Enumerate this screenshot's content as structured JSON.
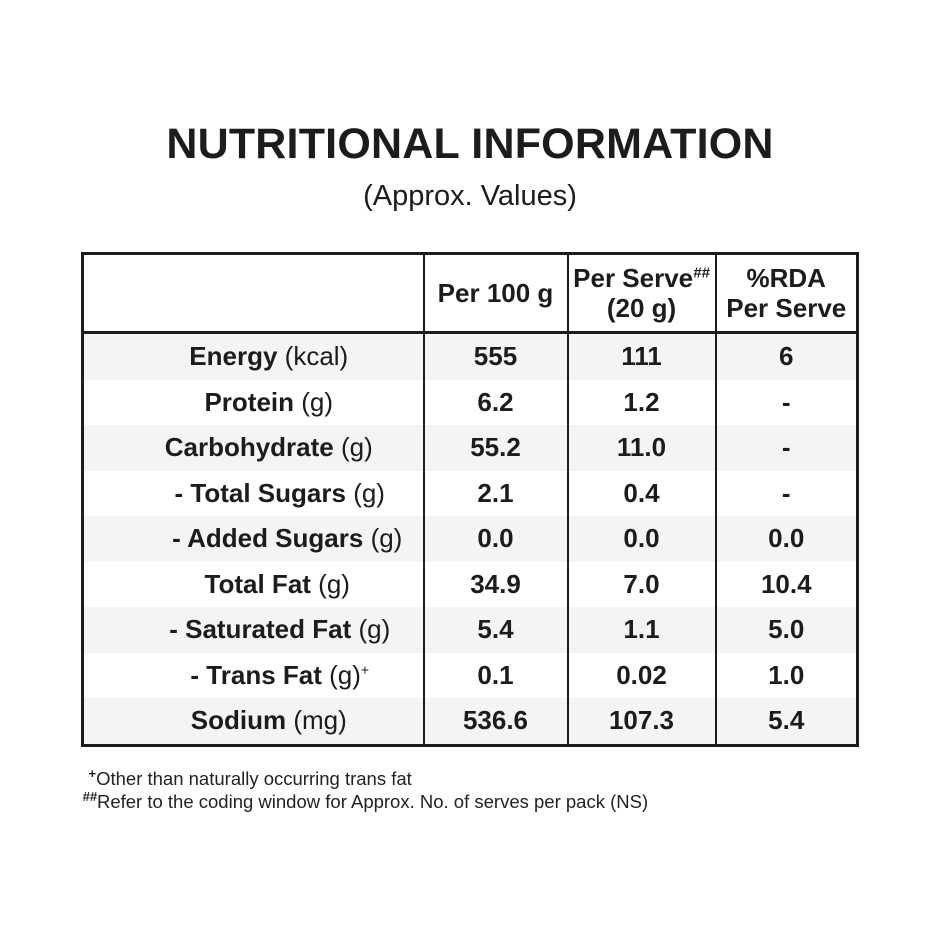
{
  "page": {
    "title": "NUTRITIONAL INFORMATION",
    "subtitle": "(Approx. Values)"
  },
  "table": {
    "header": {
      "col0": "",
      "col1": "Per 100 g",
      "col2_line1": "Per Serve",
      "col2_sup": "##",
      "col2_line2": "(20 g)",
      "col3_line1": "%RDA",
      "col3_line2": "Per Serve"
    },
    "rows": [
      {
        "name": "Energy",
        "unit": "(kcal)",
        "per_100g": "555",
        "per_serve": "111",
        "rda_per_serve": "6"
      },
      {
        "name": "Protein",
        "unit": "(g)",
        "per_100g": "6.2",
        "per_serve": "1.2",
        "rda_per_serve": "-"
      },
      {
        "name": "Carbohydrate",
        "unit": "(g)",
        "per_100g": "55.2",
        "per_serve": "11.0",
        "rda_per_serve": "-"
      },
      {
        "name": "- Total Sugars",
        "unit": "(g)",
        "per_100g": "2.1",
        "per_serve": "0.4",
        "rda_per_serve": "-"
      },
      {
        "name": "- Added Sugars",
        "unit": "(g)",
        "per_100g": "0.0",
        "per_serve": "0.0",
        "rda_per_serve": "0.0"
      },
      {
        "name": "Total Fat",
        "unit": "(g)",
        "per_100g": "34.9",
        "per_serve": "7.0",
        "rda_per_serve": "10.4"
      },
      {
        "name": "- Saturated Fat",
        "unit": "(g)",
        "per_100g": "5.4",
        "per_serve": "1.1",
        "rda_per_serve": "5.0"
      },
      {
        "name": "- Trans Fat",
        "unit": "(g)",
        "unit_sup": "+",
        "per_100g": "0.1",
        "per_serve": "0.02",
        "rda_per_serve": "1.0"
      },
      {
        "name": "Sodium",
        "unit": "(mg)",
        "per_100g": "536.6",
        "per_serve": "107.3",
        "rda_per_serve": "5.4"
      }
    ]
  },
  "footnotes": [
    {
      "marker": "+",
      "text": "Other than naturally occurring trans fat"
    },
    {
      "marker": "##",
      "text": "Refer to the coding window for Approx. No. of serves per pack (NS)"
    }
  ],
  "colors": {
    "ink": "#1c1c1c",
    "row_shade": "#f4f4f4",
    "background": "#ffffff"
  }
}
